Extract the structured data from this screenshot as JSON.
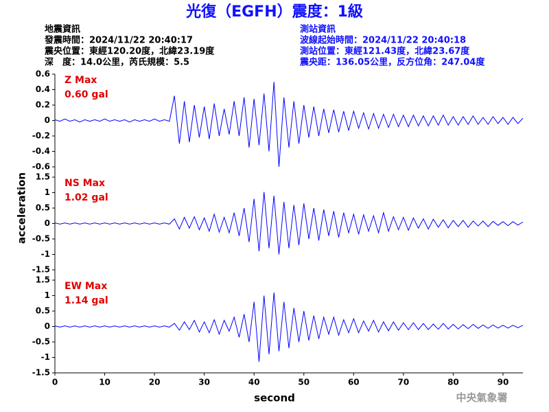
{
  "header": {
    "title": "光復（EGFH）震度：1級",
    "left_info": [
      "地震資訊",
      "發震時間：2024/11/22 20:40:17",
      "震央位置：東經120.20度，北緯23.19度",
      "深　度：14.0公里，芮氏規模：5.5"
    ],
    "right_info": [
      "測站資訊",
      "波線起始時間：2024/11/22 20:40:18",
      "測站位置：東經121.43度，北緯23.67度",
      "震央距：136.05公里，反方位角：247.04度"
    ]
  },
  "axes": {
    "y_label": "acceleration",
    "x_label": "second"
  },
  "footer": "中央氣象署",
  "chart_data": [
    {
      "type": "line",
      "label": "Z Max",
      "annotation": "0.60 gal",
      "color": "#0000ff",
      "x": [
        0,
        1,
        2,
        3,
        4,
        5,
        6,
        7,
        8,
        9,
        10,
        11,
        12,
        13,
        14,
        15,
        16,
        17,
        18,
        19,
        20,
        21,
        22,
        23,
        24,
        25,
        26,
        27,
        28,
        29,
        30,
        31,
        32,
        33,
        34,
        35,
        36,
        37,
        38,
        39,
        40,
        41,
        42,
        43,
        44,
        45,
        46,
        47,
        48,
        49,
        50,
        51,
        52,
        53,
        54,
        55,
        56,
        57,
        58,
        59,
        60,
        61,
        62,
        63,
        64,
        65,
        66,
        67,
        68,
        69,
        70,
        71,
        72,
        73,
        74,
        75,
        76,
        77,
        78,
        79,
        80,
        81,
        82,
        83,
        84,
        85,
        86,
        87,
        88,
        89,
        90,
        91,
        92,
        93,
        94
      ],
      "values": [
        0.01,
        -0.01,
        0.02,
        -0.01,
        0.01,
        -0.02,
        0.01,
        -0.01,
        0.01,
        -0.01,
        0.02,
        -0.01,
        0.01,
        -0.01,
        0.01,
        -0.02,
        0.01,
        -0.01,
        0.01,
        -0.01,
        0.02,
        -0.01,
        0.01,
        -0.01,
        0.32,
        -0.3,
        0.25,
        -0.28,
        0.2,
        -0.22,
        0.18,
        -0.24,
        0.22,
        -0.2,
        0.15,
        -0.18,
        0.25,
        -0.2,
        0.3,
        -0.35,
        0.28,
        -0.32,
        0.35,
        -0.4,
        0.5,
        -0.6,
        0.3,
        -0.35,
        0.25,
        -0.3,
        0.2,
        -0.22,
        0.18,
        -0.2,
        0.15,
        -0.16,
        0.14,
        -0.15,
        0.12,
        -0.13,
        0.12,
        -0.1,
        0.1,
        -0.11,
        0.09,
        -0.1,
        0.08,
        -0.09,
        0.08,
        -0.08,
        0.07,
        -0.08,
        0.07,
        -0.07,
        0.06,
        -0.07,
        0.06,
        -0.06,
        0.07,
        -0.06,
        0.05,
        -0.06,
        0.05,
        -0.05,
        0.06,
        -0.05,
        0.04,
        -0.05,
        0.05,
        -0.04,
        0.04,
        -0.05,
        0.04,
        -0.04,
        0.03
      ],
      "xlim": [
        0,
        94
      ],
      "ylim": [
        -0.6,
        0.6
      ],
      "yticks": [
        0.6,
        0.4,
        0.2,
        0,
        -0.2,
        -0.4,
        -0.6
      ]
    },
    {
      "type": "line",
      "label": "NS Max",
      "annotation": "1.02 gal",
      "color": "#0000ff",
      "x": [
        0,
        1,
        2,
        3,
        4,
        5,
        6,
        7,
        8,
        9,
        10,
        11,
        12,
        13,
        14,
        15,
        16,
        17,
        18,
        19,
        20,
        21,
        22,
        23,
        24,
        25,
        26,
        27,
        28,
        29,
        30,
        31,
        32,
        33,
        34,
        35,
        36,
        37,
        38,
        39,
        40,
        41,
        42,
        43,
        44,
        45,
        46,
        47,
        48,
        49,
        50,
        51,
        52,
        53,
        54,
        55,
        56,
        57,
        58,
        59,
        60,
        61,
        62,
        63,
        64,
        65,
        66,
        67,
        68,
        69,
        70,
        71,
        72,
        73,
        74,
        75,
        76,
        77,
        78,
        79,
        80,
        81,
        82,
        83,
        84,
        85,
        86,
        87,
        88,
        89,
        90,
        91,
        92,
        93,
        94
      ],
      "values": [
        0.02,
        -0.02,
        0.02,
        -0.02,
        0.02,
        -0.02,
        0.02,
        -0.02,
        0.02,
        -0.02,
        0.02,
        -0.02,
        0.02,
        -0.02,
        0.02,
        -0.02,
        0.02,
        -0.02,
        0.02,
        -0.02,
        0.02,
        -0.02,
        0.02,
        -0.02,
        0.15,
        -0.18,
        0.2,
        -0.15,
        0.22,
        -0.2,
        0.18,
        -0.25,
        0.3,
        -0.28,
        0.2,
        -0.3,
        0.35,
        -0.4,
        0.5,
        -0.6,
        0.8,
        -0.9,
        1.02,
        -0.8,
        0.9,
        -1.0,
        0.7,
        -0.8,
        0.6,
        -0.7,
        0.65,
        -0.5,
        0.5,
        -0.55,
        0.45,
        -0.4,
        0.4,
        -0.45,
        0.35,
        -0.3,
        0.3,
        -0.35,
        0.28,
        -0.25,
        0.25,
        -0.3,
        0.35,
        -0.25,
        0.22,
        -0.2,
        0.2,
        -0.22,
        0.18,
        -0.15,
        0.15,
        -0.18,
        0.14,
        -0.12,
        0.12,
        -0.14,
        0.1,
        -0.1,
        0.1,
        -0.12,
        0.08,
        -0.08,
        0.08,
        -0.1,
        0.07,
        -0.06,
        0.06,
        -0.07,
        0.06,
        -0.05,
        0.05
      ],
      "xlim": [
        0,
        94
      ],
      "ylim": [
        -1.5,
        1.5
      ],
      "yticks": [
        1.5,
        1,
        0.5,
        0,
        -0.5,
        -1,
        -1.5
      ]
    },
    {
      "type": "line",
      "label": "EW Max",
      "annotation": "1.14 gal",
      "color": "#0000ff",
      "x": [
        0,
        1,
        2,
        3,
        4,
        5,
        6,
        7,
        8,
        9,
        10,
        11,
        12,
        13,
        14,
        15,
        16,
        17,
        18,
        19,
        20,
        21,
        22,
        23,
        24,
        25,
        26,
        27,
        28,
        29,
        30,
        31,
        32,
        33,
        34,
        35,
        36,
        37,
        38,
        39,
        40,
        41,
        42,
        43,
        44,
        45,
        46,
        47,
        48,
        49,
        50,
        51,
        52,
        53,
        54,
        55,
        56,
        57,
        58,
        59,
        60,
        61,
        62,
        63,
        64,
        65,
        66,
        67,
        68,
        69,
        70,
        71,
        72,
        73,
        74,
        75,
        76,
        77,
        78,
        79,
        80,
        81,
        82,
        83,
        84,
        85,
        86,
        87,
        88,
        89,
        90,
        91,
        92,
        93,
        94
      ],
      "values": [
        0.02,
        -0.02,
        0.02,
        -0.02,
        0.02,
        -0.02,
        0.02,
        -0.02,
        0.02,
        -0.02,
        0.02,
        -0.02,
        0.02,
        -0.02,
        0.02,
        -0.02,
        0.02,
        -0.02,
        0.02,
        -0.02,
        0.02,
        -0.02,
        0.02,
        -0.02,
        0.1,
        -0.12,
        0.15,
        -0.1,
        0.2,
        -0.18,
        0.15,
        -0.2,
        0.22,
        -0.25,
        0.2,
        -0.15,
        0.3,
        -0.35,
        0.4,
        -0.5,
        0.8,
        -1.14,
        1.0,
        -0.9,
        1.1,
        -0.8,
        0.8,
        -0.7,
        0.6,
        -0.5,
        0.5,
        -0.45,
        0.35,
        -0.4,
        0.3,
        -0.25,
        0.3,
        -0.28,
        0.22,
        -0.2,
        0.25,
        -0.2,
        0.18,
        -0.15,
        0.2,
        -0.18,
        0.15,
        -0.14,
        0.15,
        -0.12,
        0.12,
        -0.1,
        0.12,
        -0.1,
        0.1,
        -0.1,
        0.08,
        -0.09,
        0.1,
        -0.08,
        0.07,
        -0.08,
        0.06,
        -0.07,
        0.07,
        -0.06,
        0.05,
        -0.06,
        0.05,
        -0.05,
        0.04,
        -0.05,
        0.04,
        -0.04,
        0.04
      ],
      "xlim": [
        0,
        94
      ],
      "ylim": [
        -1.5,
        1.5
      ],
      "yticks": [
        1.5,
        1,
        0.5,
        0,
        -0.5,
        -1,
        -1.5
      ],
      "xticks": [
        0,
        10,
        20,
        30,
        40,
        50,
        60,
        70,
        80,
        90
      ]
    }
  ]
}
